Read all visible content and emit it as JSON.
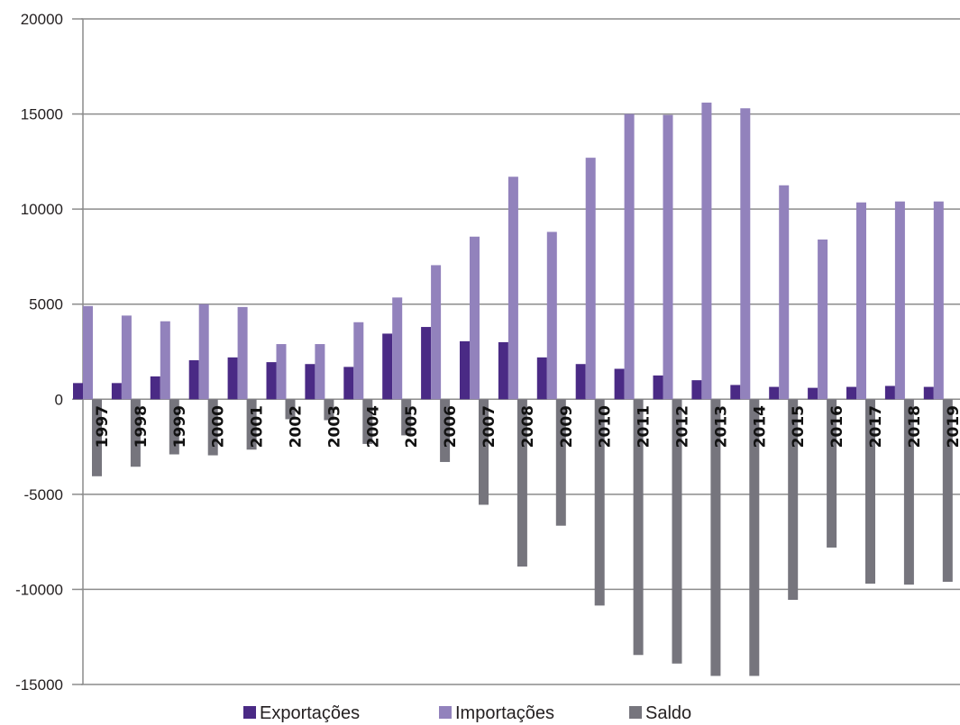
{
  "chart_data": {
    "type": "bar",
    "title": "",
    "xlabel": "",
    "ylabel": "",
    "ylim": [
      -15000,
      20000
    ],
    "yticks": [
      20000,
      15000,
      10000,
      5000,
      0,
      -5000,
      -10000,
      -15000
    ],
    "grid": true,
    "legend_position": "bottom",
    "categories": [
      "1997",
      "1998",
      "1999",
      "2000",
      "2001",
      "2002",
      "2003",
      "2004",
      "2005",
      "2006",
      "2007",
      "2008",
      "2009",
      "2010",
      "2011",
      "2012",
      "2013",
      "2014",
      "2015",
      "2016",
      "2017",
      "2018",
      "2019"
    ],
    "series": [
      {
        "name": "Exportações",
        "color": "#4a2a85",
        "values": [
          850,
          850,
          1200,
          2050,
          2200,
          1950,
          1850,
          1700,
          3450,
          3800,
          3050,
          3000,
          2200,
          1850,
          1600,
          1250,
          1000,
          750,
          650,
          600,
          650,
          700,
          650
        ]
      },
      {
        "name": "Importações",
        "color": "#9282bc",
        "values": [
          4900,
          4400,
          4100,
          5000,
          4850,
          2900,
          2900,
          4050,
          5350,
          7050,
          8550,
          11700,
          8800,
          12700,
          15000,
          14950,
          15600,
          15300,
          11250,
          8400,
          10350,
          10400,
          10400
        ]
      },
      {
        "name": "Saldo",
        "color": "#76757d",
        "values": [
          -4050,
          -3550,
          -2900,
          -2950,
          -2650,
          -1050,
          -1100,
          -2350,
          -1900,
          -3300,
          -5550,
          -8800,
          -6650,
          -10850,
          -13450,
          -13900,
          -14550,
          -14550,
          -10550,
          -7800,
          -9700,
          -9750,
          -9600
        ]
      }
    ]
  }
}
